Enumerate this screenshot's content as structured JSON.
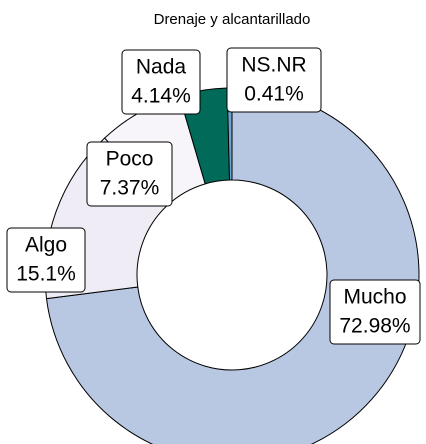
{
  "chart_data": {
    "type": "donut",
    "title": "Drenaje y alcantarillado",
    "categories": [
      "Mucho",
      "Algo",
      "Poco",
      "Nada",
      "NS.NR"
    ],
    "values": [
      72.98,
      15.1,
      7.37,
      4.14,
      0.41
    ],
    "value_labels": [
      "72.98%",
      "15.1%",
      "7.37%",
      "4.14%",
      "0.41%"
    ],
    "colors": [
      "#b9c8e2",
      "#efecf5",
      "#f7f5fa",
      "#016a58",
      "#6aa6d1"
    ]
  }
}
